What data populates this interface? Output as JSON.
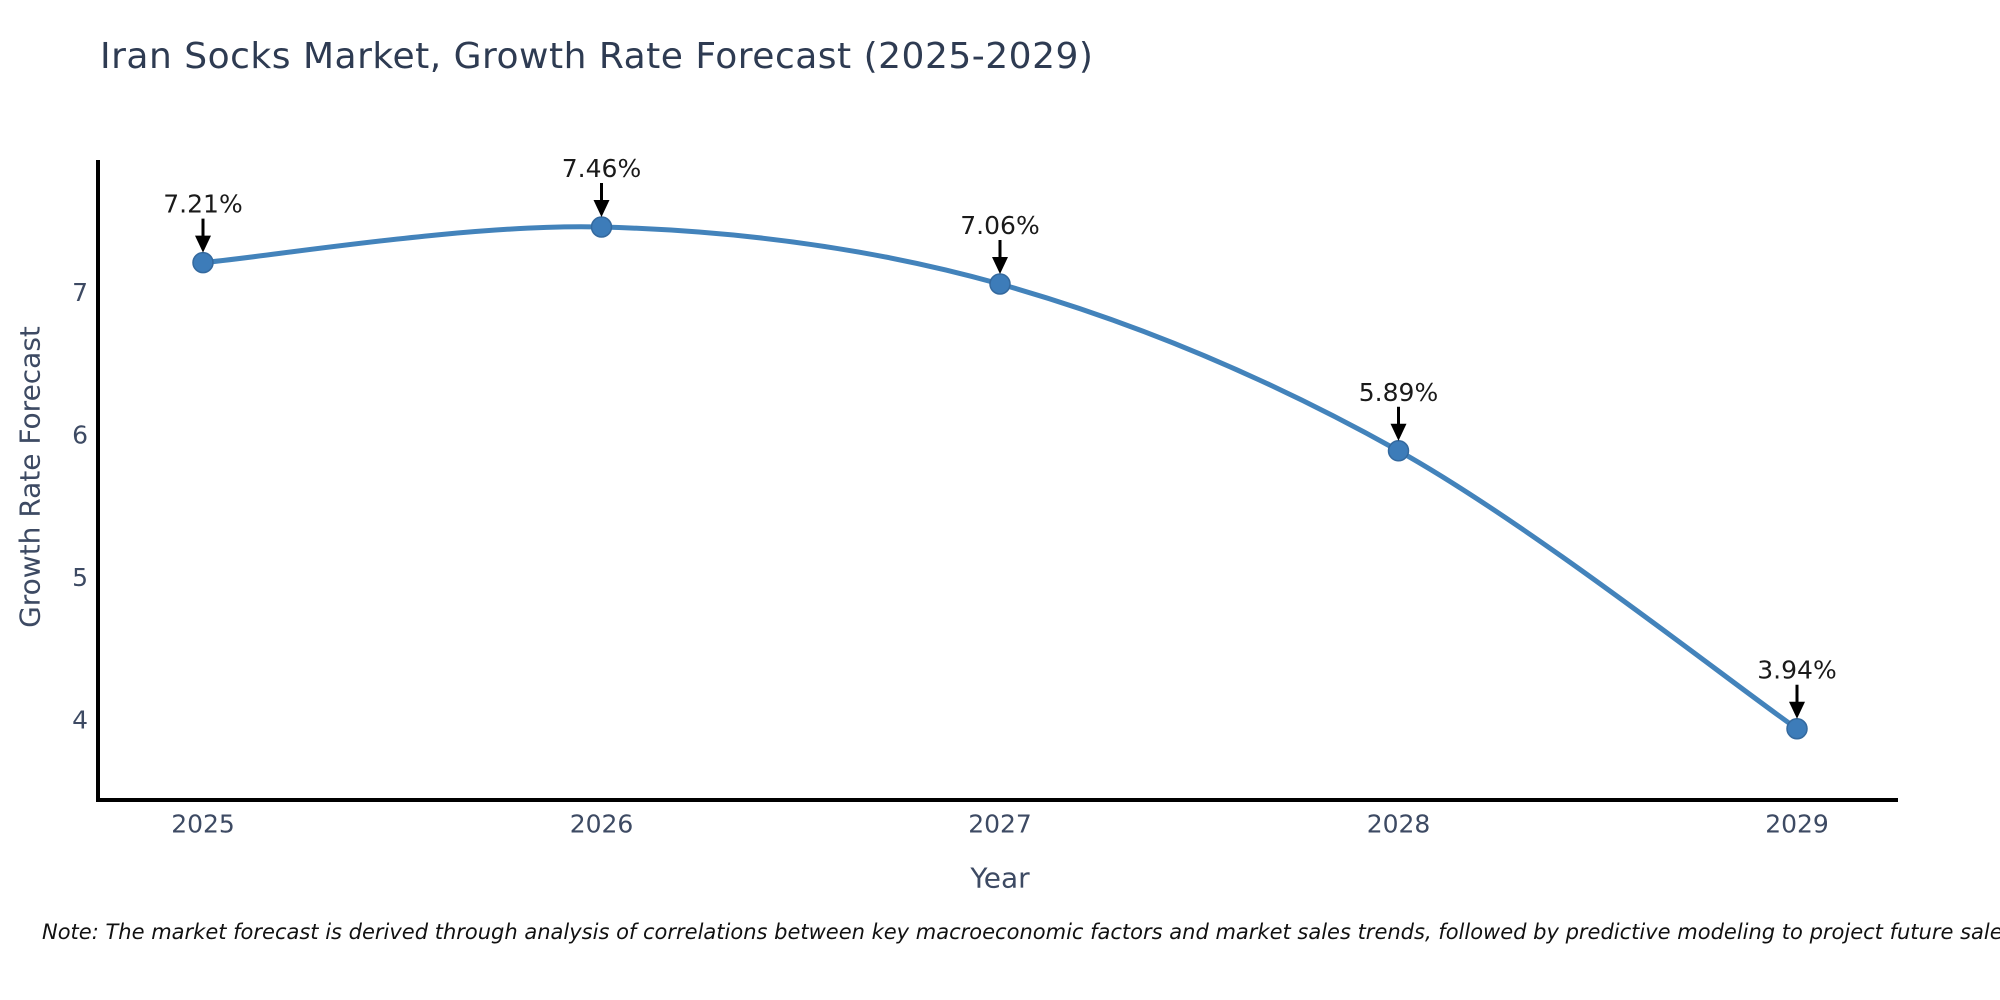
{
  "title": "Iran Socks Market, Growth Rate Forecast (2025-2029)",
  "note": {
    "text": "Note: The market forecast is derived through analysis of correlations between key macroeconomic factors and market sales trends, followed by predictive modeling to project future sales."
  },
  "chart_data": {
    "type": "line",
    "title": "Iran Socks Market, Growth Rate Forecast (2025-2029)",
    "categories": [
      "2025",
      "2026",
      "2027",
      "2028",
      "2029"
    ],
    "series": [
      {
        "name": "Growth Rate Forecast",
        "values": [
          7.21,
          7.46,
          7.06,
          5.89,
          3.94
        ]
      }
    ],
    "point_labels": [
      "7.21%",
      "7.46%",
      "7.06%",
      "5.89%",
      "3.94%"
    ],
    "xlabel": "Year",
    "ylabel": "Growth Rate Forecast",
    "yticks": [
      4,
      5,
      6,
      7
    ],
    "ylim": [
      3.44,
      7.93
    ],
    "grid": false,
    "legend": "none",
    "line_shape": "spline",
    "marker": "circle",
    "annotation_arrows": true,
    "colors": {
      "line": "#4383bb",
      "marker_fill": "#3d7cb9",
      "marker_edge": "#34699e",
      "annotation_text": "#1a1a1a",
      "arrow": "#000000",
      "axis_spine": "#000000",
      "tick_label": "#3d4a63",
      "title": "#2e3b52"
    }
  }
}
